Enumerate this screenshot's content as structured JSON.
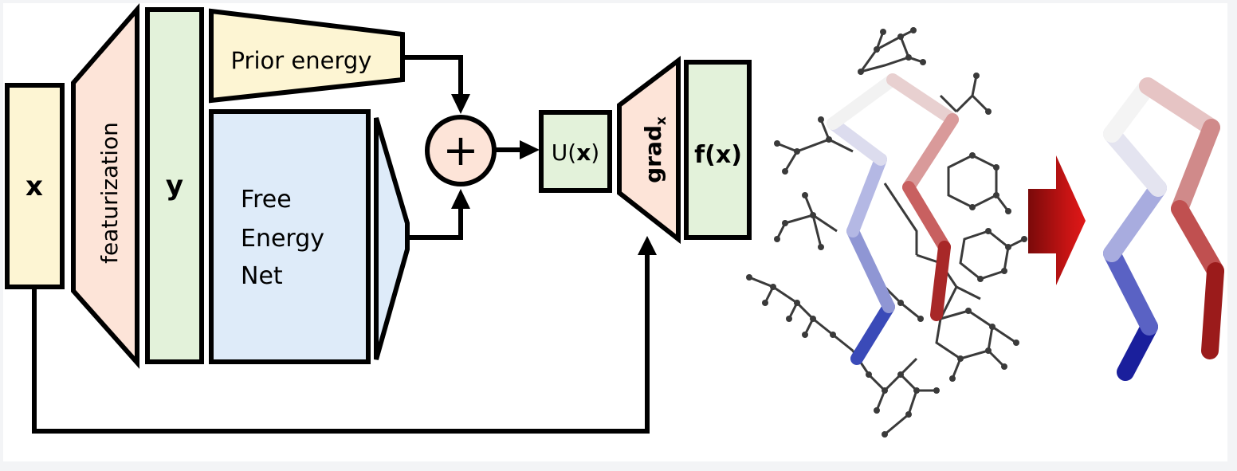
{
  "diagram": {
    "input_label": "x",
    "featurization_label": "featurization",
    "features_label": "y",
    "prior_energy_label": "Prior energy",
    "free_energy_net_lines": [
      "Free",
      "Energy",
      "Net"
    ],
    "sum_symbol": "+",
    "energy_label_prefix": "U(",
    "energy_label_var": "x",
    "energy_label_suffix": ")",
    "grad_label": "grad",
    "grad_subscript": "x",
    "force_label_prefix": "f(",
    "force_label_var": "x",
    "force_label_suffix": ")"
  },
  "colors": {
    "background": "#f3f4f6",
    "canvas": "#ffffff",
    "input_box": "#fdf5d3",
    "featurization": "#fde4d8",
    "features_box": "#e3f2da",
    "prior_energy": "#fdf5d3",
    "free_energy_net": "#deebf9",
    "sum_node": "#fde4d8",
    "energy_box": "#e3f2da",
    "grad_box": "#fde4d8",
    "force_box": "#e3f2da",
    "stroke": "#000000",
    "cg_blue": "#1a1f9c",
    "cg_white": "#f2f2f2",
    "cg_red": "#9b1b1b",
    "big_arrow": "#b01010"
  }
}
